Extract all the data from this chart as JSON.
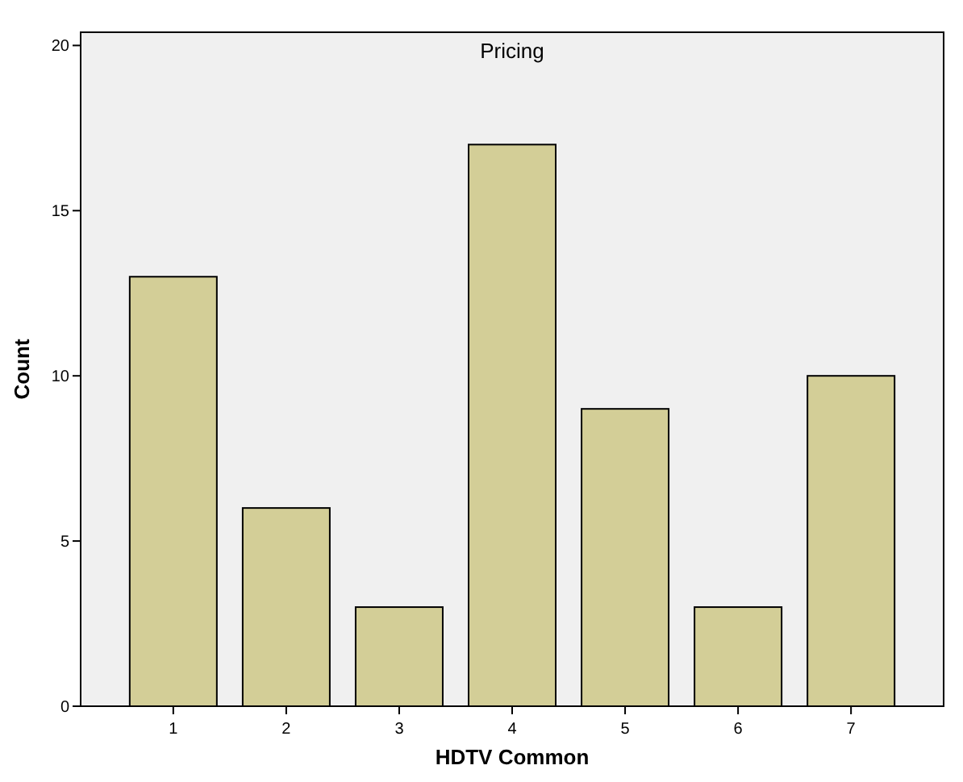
{
  "chart_data": {
    "type": "bar",
    "title": "Pricing",
    "xlabel": "HDTV Common",
    "ylabel": "Count",
    "categories": [
      "1",
      "2",
      "3",
      "4",
      "5",
      "6",
      "7"
    ],
    "values": [
      13,
      6,
      3,
      17,
      9,
      3,
      10
    ],
    "color": "#d3ce97",
    "ylim": [
      0,
      20.4
    ],
    "yticks": [
      0,
      5,
      10,
      15,
      20
    ],
    "grid": false
  }
}
